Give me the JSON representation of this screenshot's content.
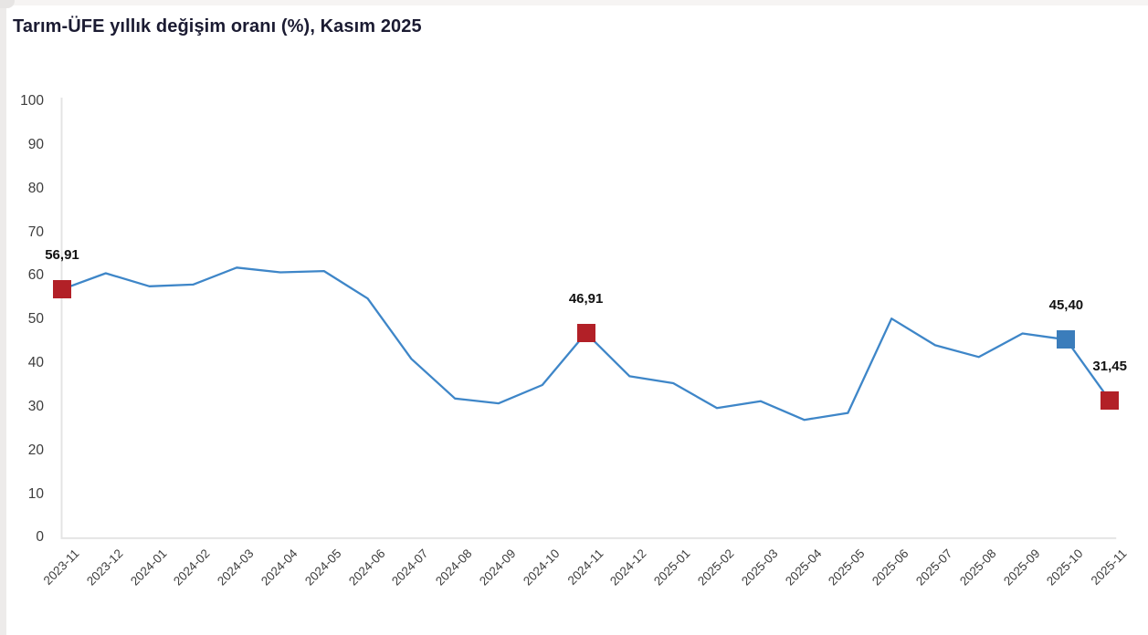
{
  "page": {
    "title": "Tarım-ÜFE yıllık değişim oranı (%), Kasım 2025"
  },
  "colors": {
    "title": "#1b1b32",
    "line": "#3e86c8",
    "marker_red": "#b22027",
    "marker_blue": "#3b7dbb",
    "axis": "#e4e4e4",
    "tick_text": "#3d3d3d",
    "point_label_text": "#111111"
  },
  "chart_data": {
    "type": "line",
    "title": "Tarım-ÜFE yıllık değişim oranı (%), Kasım 2025",
    "x": [
      "2023-11",
      "2023-12",
      "2024-01",
      "2024-02",
      "2024-03",
      "2024-04",
      "2024-05",
      "2024-06",
      "2024-07",
      "2024-08",
      "2024-09",
      "2024-10",
      "2024-11",
      "2024-12",
      "2025-01",
      "2025-02",
      "2025-03",
      "2025-04",
      "2025-05",
      "2025-06",
      "2025-07",
      "2025-08",
      "2025-09",
      "2025-10",
      "2025-11"
    ],
    "values": [
      56.91,
      60.6,
      57.6,
      58.0,
      61.9,
      60.8,
      61.1,
      54.8,
      41.0,
      31.9,
      30.8,
      35.0,
      46.91,
      37.0,
      35.4,
      29.7,
      31.3,
      27.0,
      28.6,
      50.2,
      44.1,
      41.4,
      46.8,
      45.4,
      31.45
    ],
    "ylim": [
      0,
      100
    ],
    "ytick_step": 10,
    "grid": false,
    "legend": "none",
    "xlabel": "",
    "ylabel": "",
    "annotations": [
      {
        "x": "2023-11",
        "index": 0,
        "value": 56.91,
        "label": "56,91",
        "marker": "square",
        "color_key": "marker_red"
      },
      {
        "x": "2024-11",
        "index": 12,
        "value": 46.91,
        "label": "46,91",
        "marker": "square",
        "color_key": "marker_red"
      },
      {
        "x": "2025-10",
        "index": 23,
        "value": 45.4,
        "label": "45,40",
        "marker": "square",
        "color_key": "marker_blue"
      },
      {
        "x": "2025-11",
        "index": 24,
        "value": 31.45,
        "label": "31,45",
        "marker": "square",
        "color_key": "marker_red"
      }
    ]
  }
}
